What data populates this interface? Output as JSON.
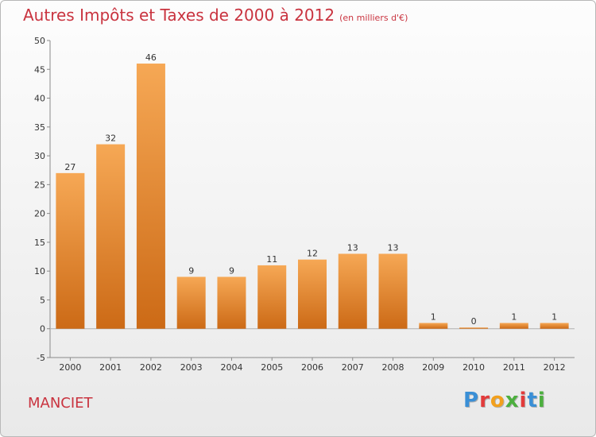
{
  "header": {
    "title": "Autres Impôts et Taxes de 2000 à 2012",
    "unit": "(en milliers d'€)"
  },
  "footer": {
    "commune": "MANCIET",
    "logo_text": "Proxiti",
    "logo_colors": [
      "#3a8fd6",
      "#e23b3b",
      "#f2a01d",
      "#4caf3e",
      "#e23b3b",
      "#3a8fd6",
      "#4caf3e"
    ]
  },
  "colors": {
    "bar_light": "#f6a855",
    "bar_dark": "#cc6a16",
    "title": "#c9333f"
  },
  "chart_data": {
    "type": "bar",
    "title": "Autres Impôts et Taxes de 2000 à 2012",
    "subtitle": "(en milliers d'€)",
    "xlabel": "",
    "ylabel": "",
    "categories": [
      "2000",
      "2001",
      "2002",
      "2003",
      "2004",
      "2005",
      "2006",
      "2007",
      "2008",
      "2009",
      "2010",
      "2011",
      "2012"
    ],
    "values": [
      27,
      32,
      46,
      9,
      9,
      11,
      12,
      13,
      13,
      1,
      0,
      1,
      1
    ],
    "ylim": [
      -5,
      50
    ],
    "yticks": [
      -5,
      0,
      5,
      10,
      15,
      20,
      25,
      30,
      35,
      40,
      45,
      50
    ],
    "grid": false,
    "legend": "none"
  }
}
